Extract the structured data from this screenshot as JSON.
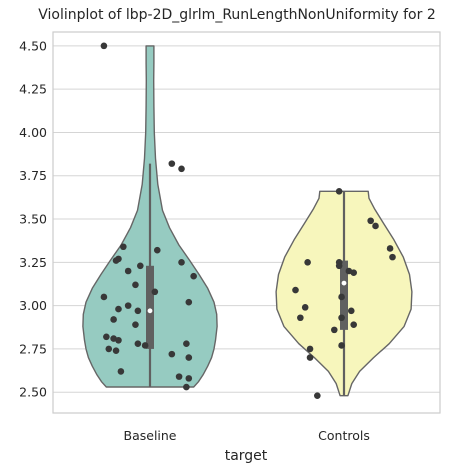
{
  "chart_data": {
    "type": "violin",
    "title": "Violinplot of lbp-2D_glrlm_RunLengthNonUniformity for 2",
    "xlabel": "target",
    "ylabel": "",
    "categories": [
      "Baseline",
      "Controls"
    ],
    "ylim": [
      2.38,
      4.58
    ],
    "yticks": [
      "2.50",
      "2.75",
      "3.00",
      "3.25",
      "3.50",
      "3.75",
      "4.00",
      "4.25",
      "4.50"
    ],
    "grid": true,
    "colors": {
      "Baseline": "#96cbc1",
      "Controls": "#f7f6bc",
      "outline": "#666666",
      "points": "#383838",
      "box": "#606060"
    },
    "violins": [
      {
        "name": "Baseline",
        "min": 2.53,
        "max": 4.5,
        "q1": 2.75,
        "median": 2.97,
        "q3": 3.23,
        "whisker_low": 2.53,
        "whisker_high": 3.82,
        "profile": [
          [
            2.53,
            0.56
          ],
          [
            2.56,
            0.62
          ],
          [
            2.6,
            0.68
          ],
          [
            2.65,
            0.74
          ],
          [
            2.7,
            0.79
          ],
          [
            2.75,
            0.82
          ],
          [
            2.8,
            0.84
          ],
          [
            2.88,
            0.86
          ],
          [
            2.95,
            0.855
          ],
          [
            3.02,
            0.82
          ],
          [
            3.1,
            0.74
          ],
          [
            3.18,
            0.63
          ],
          [
            3.26,
            0.51
          ],
          [
            3.35,
            0.37
          ],
          [
            3.45,
            0.25
          ],
          [
            3.55,
            0.16
          ],
          [
            3.7,
            0.1
          ],
          [
            3.85,
            0.07
          ],
          [
            4.0,
            0.055
          ],
          [
            4.15,
            0.05
          ],
          [
            4.3,
            0.048
          ],
          [
            4.4,
            0.05
          ],
          [
            4.5,
            0.05
          ]
        ],
        "points": [
          [
            -0.19,
            4.5
          ],
          [
            0.09,
            3.82
          ],
          [
            0.13,
            3.79
          ],
          [
            -0.11,
            3.34
          ],
          [
            0.03,
            3.32
          ],
          [
            -0.13,
            3.27
          ],
          [
            -0.14,
            3.26
          ],
          [
            0.13,
            3.25
          ],
          [
            -0.04,
            3.23
          ],
          [
            -0.09,
            3.2
          ],
          [
            0.18,
            3.17
          ],
          [
            -0.06,
            3.12
          ],
          [
            0.02,
            3.08
          ],
          [
            -0.19,
            3.05
          ],
          [
            0.16,
            3.02
          ],
          [
            -0.09,
            3.0
          ],
          [
            -0.13,
            2.98
          ],
          [
            -0.05,
            2.97
          ],
          [
            -0.15,
            2.92
          ],
          [
            -0.06,
            2.89
          ],
          [
            -0.18,
            2.82
          ],
          [
            -0.15,
            2.81
          ],
          [
            -0.13,
            2.8
          ],
          [
            0.15,
            2.78
          ],
          [
            -0.05,
            2.78
          ],
          [
            -0.02,
            2.77
          ],
          [
            -0.17,
            2.75
          ],
          [
            -0.14,
            2.74
          ],
          [
            0.09,
            2.72
          ],
          [
            0.16,
            2.7
          ],
          [
            -0.12,
            2.62
          ],
          [
            0.12,
            2.59
          ],
          [
            0.16,
            2.58
          ],
          [
            0.15,
            2.53
          ]
        ]
      },
      {
        "name": "Controls",
        "min": 2.48,
        "max": 3.66,
        "q1": 2.86,
        "median": 3.13,
        "q3": 3.26,
        "whisker_low": 2.48,
        "whisker_high": 3.66,
        "profile": [
          [
            2.48,
            0.05
          ],
          [
            2.55,
            0.1
          ],
          [
            2.62,
            0.2
          ],
          [
            2.7,
            0.38
          ],
          [
            2.78,
            0.58
          ],
          [
            2.88,
            0.77
          ],
          [
            2.98,
            0.86
          ],
          [
            3.08,
            0.87
          ],
          [
            3.18,
            0.84
          ],
          [
            3.28,
            0.76
          ],
          [
            3.38,
            0.64
          ],
          [
            3.48,
            0.5
          ],
          [
            3.56,
            0.39
          ],
          [
            3.62,
            0.32
          ],
          [
            3.66,
            0.31
          ]
        ],
        "points": [
          [
            -0.02,
            3.66
          ],
          [
            0.11,
            3.49
          ],
          [
            0.13,
            3.46
          ],
          [
            0.19,
            3.33
          ],
          [
            0.2,
            3.28
          ],
          [
            -0.15,
            3.25
          ],
          [
            -0.02,
            3.25
          ],
          [
            -0.02,
            3.23
          ],
          [
            0.02,
            3.2
          ],
          [
            0.04,
            3.19
          ],
          [
            -0.2,
            3.09
          ],
          [
            -0.01,
            3.05
          ],
          [
            -0.16,
            2.99
          ],
          [
            0.03,
            2.97
          ],
          [
            -0.18,
            2.93
          ],
          [
            -0.01,
            2.93
          ],
          [
            0.04,
            2.89
          ],
          [
            -0.04,
            2.86
          ],
          [
            -0.01,
            2.77
          ],
          [
            -0.14,
            2.75
          ],
          [
            -0.14,
            2.7
          ],
          [
            -0.11,
            2.48
          ]
        ]
      }
    ]
  }
}
